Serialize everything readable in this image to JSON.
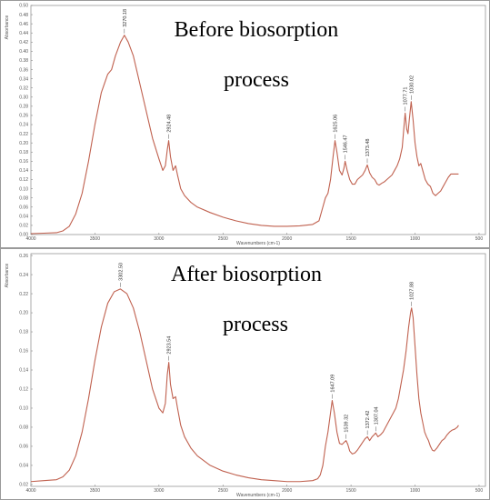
{
  "chart_data": [
    {
      "type": "line",
      "title_lines": [
        "Before biosorption",
        "process"
      ],
      "xlabel": "Wavenumbers (cm-1)",
      "ylabel": "Absorbance",
      "xlim": [
        4000,
        450
      ],
      "ylim": [
        0,
        0.5
      ],
      "x_ticks": [
        "4000",
        "3500",
        "3000",
        "2500",
        "2000",
        "1500",
        "1000",
        "500"
      ],
      "x_tick_values": [
        4000,
        3500,
        3000,
        2500,
        2000,
        1500,
        1000,
        500
      ],
      "y_ticks": [
        "0.00",
        "0.02",
        "0.04",
        "0.06",
        "0.08",
        "0.10",
        "0.12",
        "0.14",
        "0.16",
        "0.18",
        "0.20",
        "0.22",
        "0.24",
        "0.26",
        "0.28",
        "0.30",
        "0.32",
        "0.34",
        "0.36",
        "0.38",
        "0.40",
        "0.42",
        "0.44",
        "0.46",
        "0.48",
        "0.50"
      ],
      "y_tick_values": [
        0,
        0.02,
        0.04,
        0.06,
        0.08,
        0.1,
        0.12,
        0.14,
        0.16,
        0.18,
        0.2,
        0.22,
        0.24,
        0.26,
        0.28,
        0.3,
        0.32,
        0.34,
        0.36,
        0.38,
        0.4,
        0.42,
        0.44,
        0.46,
        0.48,
        0.5
      ],
      "peak_labels": [
        {
          "text": "3270.18",
          "x": 3270,
          "y": 0.435
        },
        {
          "text": "2924.48",
          "x": 2924,
          "y": 0.205
        },
        {
          "text": "1625.06",
          "x": 1625,
          "y": 0.205
        },
        {
          "text": "1546.47",
          "x": 1546,
          "y": 0.16
        },
        {
          "text": "1373.48",
          "x": 1373,
          "y": 0.152
        },
        {
          "text": "1077.71",
          "x": 1077,
          "y": 0.265
        },
        {
          "text": "1030.02",
          "x": 1030,
          "y": 0.29
        }
      ],
      "series": [
        {
          "points": [
            [
              4000,
              0.002
            ],
            [
              3900,
              0.003
            ],
            [
              3800,
              0.004
            ],
            [
              3750,
              0.008
            ],
            [
              3700,
              0.018
            ],
            [
              3650,
              0.045
            ],
            [
              3600,
              0.09
            ],
            [
              3550,
              0.16
            ],
            [
              3500,
              0.24
            ],
            [
              3450,
              0.31
            ],
            [
              3400,
              0.35
            ],
            [
              3370,
              0.36
            ],
            [
              3340,
              0.39
            ],
            [
              3300,
              0.42
            ],
            [
              3270,
              0.435
            ],
            [
              3240,
              0.42
            ],
            [
              3200,
              0.39
            ],
            [
              3150,
              0.33
            ],
            [
              3100,
              0.27
            ],
            [
              3050,
              0.21
            ],
            [
              3000,
              0.165
            ],
            [
              2970,
              0.14
            ],
            [
              2950,
              0.15
            ],
            [
              2935,
              0.185
            ],
            [
              2924,
              0.205
            ],
            [
              2910,
              0.17
            ],
            [
              2890,
              0.14
            ],
            [
              2870,
              0.15
            ],
            [
              2855,
              0.13
            ],
            [
              2830,
              0.1
            ],
            [
              2800,
              0.085
            ],
            [
              2750,
              0.07
            ],
            [
              2700,
              0.06
            ],
            [
              2600,
              0.048
            ],
            [
              2500,
              0.038
            ],
            [
              2400,
              0.03
            ],
            [
              2300,
              0.024
            ],
            [
              2200,
              0.02
            ],
            [
              2100,
              0.018
            ],
            [
              2000,
              0.018
            ],
            [
              1900,
              0.019
            ],
            [
              1800,
              0.022
            ],
            [
              1750,
              0.03
            ],
            [
              1720,
              0.06
            ],
            [
              1700,
              0.08
            ],
            [
              1680,
              0.09
            ],
            [
              1660,
              0.12
            ],
            [
              1640,
              0.17
            ],
            [
              1625,
              0.205
            ],
            [
              1610,
              0.18
            ],
            [
              1590,
              0.14
            ],
            [
              1570,
              0.13
            ],
            [
              1555,
              0.145
            ],
            [
              1546,
              0.16
            ],
            [
              1530,
              0.14
            ],
            [
              1510,
              0.12
            ],
            [
              1490,
              0.11
            ],
            [
              1470,
              0.11
            ],
            [
              1450,
              0.12
            ],
            [
              1430,
              0.125
            ],
            [
              1410,
              0.13
            ],
            [
              1390,
              0.14
            ],
            [
              1373,
              0.152
            ],
            [
              1355,
              0.135
            ],
            [
              1335,
              0.125
            ],
            [
              1315,
              0.12
            ],
            [
              1295,
              0.11
            ],
            [
              1280,
              0.108
            ],
            [
              1260,
              0.112
            ],
            [
              1240,
              0.115
            ],
            [
              1220,
              0.12
            ],
            [
              1200,
              0.125
            ],
            [
              1180,
              0.13
            ],
            [
              1160,
              0.14
            ],
            [
              1140,
              0.15
            ],
            [
              1120,
              0.165
            ],
            [
              1100,
              0.19
            ],
            [
              1085,
              0.24
            ],
            [
              1077,
              0.265
            ],
            [
              1065,
              0.23
            ],
            [
              1055,
              0.22
            ],
            [
              1045,
              0.25
            ],
            [
              1030,
              0.29
            ],
            [
              1015,
              0.25
            ],
            [
              1000,
              0.2
            ],
            [
              985,
              0.17
            ],
            [
              970,
              0.15
            ],
            [
              955,
              0.155
            ],
            [
              940,
              0.14
            ],
            [
              920,
              0.12
            ],
            [
              900,
              0.11
            ],
            [
              880,
              0.105
            ],
            [
              860,
              0.09
            ],
            [
              840,
              0.085
            ],
            [
              820,
              0.09
            ],
            [
              800,
              0.095
            ],
            [
              780,
              0.105
            ],
            [
              760,
              0.115
            ],
            [
              740,
              0.125
            ],
            [
              720,
              0.132
            ],
            [
              700,
              0.132
            ],
            [
              680,
              0.132
            ],
            [
              660,
              0.132
            ]
          ]
        }
      ]
    },
    {
      "type": "line",
      "title_lines": [
        "After biosorption",
        "process"
      ],
      "xlabel": "Wavenumbers (cm-1)",
      "ylabel": "Absorbance",
      "xlim": [
        4000,
        450
      ],
      "ylim": [
        0.018,
        0.262
      ],
      "x_ticks": [
        "4000",
        "3500",
        "3000",
        "2500",
        "2000",
        "1500",
        "1000",
        "500"
      ],
      "x_tick_values": [
        4000,
        3500,
        3000,
        2500,
        2000,
        1500,
        1000,
        500
      ],
      "y_ticks": [
        "0.02",
        "0.04",
        "0.06",
        "0.08",
        "0.10",
        "0.12",
        "0.14",
        "0.16",
        "0.18",
        "0.20",
        "0.22",
        "0.24",
        "0.26"
      ],
      "y_tick_values": [
        0.02,
        0.04,
        0.06,
        0.08,
        0.1,
        0.12,
        0.14,
        0.16,
        0.18,
        0.2,
        0.22,
        0.24,
        0.26
      ],
      "peak_labels": [
        {
          "text": "3302.50",
          "x": 3302,
          "y": 0.225
        },
        {
          "text": "2923.54",
          "x": 2923,
          "y": 0.148
        },
        {
          "text": "1647.09",
          "x": 1647,
          "y": 0.108
        },
        {
          "text": "1539.32",
          "x": 1539,
          "y": 0.066
        },
        {
          "text": "1372.42",
          "x": 1372,
          "y": 0.07
        },
        {
          "text": "1307.04",
          "x": 1307,
          "y": 0.074
        },
        {
          "text": "1027.88",
          "x": 1027,
          "y": 0.205
        }
      ],
      "series": [
        {
          "points": [
            [
              4000,
              0.023
            ],
            [
              3900,
              0.024
            ],
            [
              3800,
              0.025
            ],
            [
              3750,
              0.028
            ],
            [
              3700,
              0.035
            ],
            [
              3650,
              0.05
            ],
            [
              3600,
              0.075
            ],
            [
              3550,
              0.11
            ],
            [
              3500,
              0.15
            ],
            [
              3450,
              0.185
            ],
            [
              3400,
              0.21
            ],
            [
              3350,
              0.222
            ],
            [
              3302,
              0.225
            ],
            [
              3250,
              0.22
            ],
            [
              3200,
              0.205
            ],
            [
              3150,
              0.18
            ],
            [
              3100,
              0.15
            ],
            [
              3050,
              0.12
            ],
            [
              3000,
              0.1
            ],
            [
              2970,
              0.095
            ],
            [
              2950,
              0.105
            ],
            [
              2935,
              0.135
            ],
            [
              2923,
              0.148
            ],
            [
              2910,
              0.125
            ],
            [
              2890,
              0.11
            ],
            [
              2870,
              0.112
            ],
            [
              2855,
              0.1
            ],
            [
              2830,
              0.082
            ],
            [
              2800,
              0.07
            ],
            [
              2750,
              0.058
            ],
            [
              2700,
              0.05
            ],
            [
              2600,
              0.04
            ],
            [
              2500,
              0.034
            ],
            [
              2400,
              0.03
            ],
            [
              2300,
              0.027
            ],
            [
              2200,
              0.025
            ],
            [
              2100,
              0.024
            ],
            [
              2000,
              0.023
            ],
            [
              1900,
              0.023
            ],
            [
              1800,
              0.024
            ],
            [
              1760,
              0.026
            ],
            [
              1740,
              0.03
            ],
            [
              1720,
              0.04
            ],
            [
              1700,
              0.06
            ],
            [
              1680,
              0.075
            ],
            [
              1660,
              0.095
            ],
            [
              1647,
              0.108
            ],
            [
              1630,
              0.095
            ],
            [
              1610,
              0.075
            ],
            [
              1590,
              0.063
            ],
            [
              1570,
              0.062
            ],
            [
              1555,
              0.064
            ],
            [
              1539,
              0.066
            ],
            [
              1525,
              0.062
            ],
            [
              1510,
              0.055
            ],
            [
              1490,
              0.052
            ],
            [
              1470,
              0.053
            ],
            [
              1450,
              0.056
            ],
            [
              1430,
              0.06
            ],
            [
              1410,
              0.064
            ],
            [
              1390,
              0.068
            ],
            [
              1372,
              0.07
            ],
            [
              1355,
              0.066
            ],
            [
              1335,
              0.07
            ],
            [
              1320,
              0.072
            ],
            [
              1307,
              0.074
            ],
            [
              1290,
              0.07
            ],
            [
              1270,
              0.072
            ],
            [
              1250,
              0.075
            ],
            [
              1230,
              0.08
            ],
            [
              1210,
              0.085
            ],
            [
              1190,
              0.09
            ],
            [
              1170,
              0.095
            ],
            [
              1150,
              0.1
            ],
            [
              1130,
              0.11
            ],
            [
              1110,
              0.125
            ],
            [
              1090,
              0.14
            ],
            [
              1070,
              0.16
            ],
            [
              1050,
              0.185
            ],
            [
              1035,
              0.2
            ],
            [
              1027,
              0.205
            ],
            [
              1015,
              0.195
            ],
            [
              1000,
              0.165
            ],
            [
              985,
              0.135
            ],
            [
              970,
              0.11
            ],
            [
              955,
              0.095
            ],
            [
              940,
              0.085
            ],
            [
              925,
              0.075
            ],
            [
              910,
              0.07
            ],
            [
              895,
              0.066
            ],
            [
              880,
              0.06
            ],
            [
              865,
              0.056
            ],
            [
              850,
              0.055
            ],
            [
              830,
              0.058
            ],
            [
              810,
              0.062
            ],
            [
              790,
              0.066
            ],
            [
              770,
              0.068
            ],
            [
              750,
              0.072
            ],
            [
              730,
              0.075
            ],
            [
              710,
              0.077
            ],
            [
              690,
              0.078
            ],
            [
              670,
              0.08
            ],
            [
              660,
              0.082
            ]
          ]
        }
      ]
    }
  ]
}
